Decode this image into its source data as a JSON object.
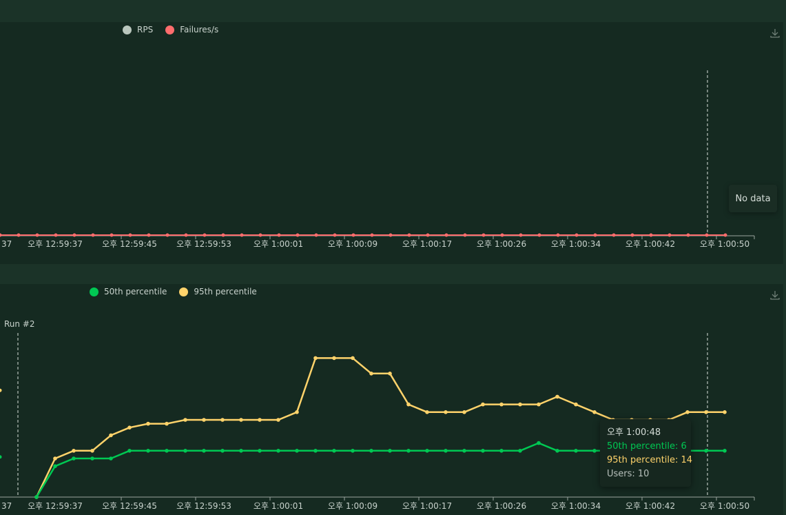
{
  "colors": {
    "rps": "#b9c6bd",
    "failures": "#ff6d6d",
    "p50": "#00c853",
    "p95": "#ffd36b",
    "grid_axis": "#9aa59f"
  },
  "top_chart": {
    "legend": [
      {
        "label": "RPS",
        "color": "#b9c6bd"
      },
      {
        "label": "Failures/s",
        "color": "#ff6d6d"
      }
    ],
    "no_data": "No data",
    "download_icon": "download-icon"
  },
  "bottom_chart": {
    "legend": [
      {
        "label": "50th percentile",
        "color": "#00c853"
      },
      {
        "label": "95th percentile",
        "color": "#ffd36b"
      }
    ],
    "run_label": "Run #2",
    "download_icon": "download-icon",
    "tooltip": {
      "time": "오후 1:00:48",
      "p50": "50th percentile: 6",
      "p95": "95th percentile: 14",
      "users": "Users: 10"
    }
  },
  "chart_data": [
    {
      "type": "line",
      "title": "",
      "x_tick_labels": [
        "37",
        "오후 12:59:37",
        "오후 12:59:45",
        "오후 12:59:53",
        "오후 1:00:01",
        "오후 1:00:09",
        "오후 1:00:17",
        "오후 1:00:26",
        "오후 1:00:34",
        "오후 1:00:42",
        "오후 1:00:50"
      ],
      "series": [
        {
          "name": "RPS",
          "values": []
        },
        {
          "name": "Failures/s",
          "values": [
            0,
            0,
            0,
            0,
            0,
            0,
            0,
            0,
            0,
            0,
            0,
            0,
            0,
            0,
            0,
            0,
            0,
            0,
            0,
            0,
            0,
            0,
            0,
            0,
            0,
            0,
            0,
            0,
            0,
            0,
            0,
            0,
            0,
            0,
            0,
            0,
            0,
            0,
            0,
            0
          ]
        }
      ],
      "legend_position": "top"
    },
    {
      "type": "line",
      "title": "",
      "x_tick_labels": [
        "37",
        "오후 12:59:37",
        "오후 12:59:45",
        "오후 12:59:53",
        "오후 1:00:01",
        "오후 1:00:09",
        "오후 1:00:17",
        "오후 1:00:26",
        "오후 1:00:34",
        "오후 1:00:42",
        "오후 1:00:50"
      ],
      "series": [
        {
          "name": "50th percentile",
          "values": [
            0,
            4,
            5,
            5,
            5,
            6,
            6,
            6,
            6,
            6,
            6,
            6,
            6,
            6,
            6,
            6,
            6,
            6,
            6,
            6,
            6,
            6,
            6,
            6,
            6,
            6,
            6,
            7,
            6,
            6,
            6,
            6,
            6,
            6,
            6,
            6,
            6,
            6
          ]
        },
        {
          "name": "95th percentile",
          "values": [
            0,
            5,
            6,
            6,
            8,
            9,
            9.5,
            9.5,
            10,
            10,
            10,
            10,
            10,
            10,
            11,
            18,
            18,
            18,
            16,
            16,
            12,
            11,
            11,
            11,
            12,
            12,
            12,
            12,
            13,
            12,
            11,
            10,
            10,
            10,
            10,
            11,
            11,
            11
          ]
        }
      ],
      "annotations": [
        "Run #2"
      ],
      "legend_position": "top"
    }
  ]
}
